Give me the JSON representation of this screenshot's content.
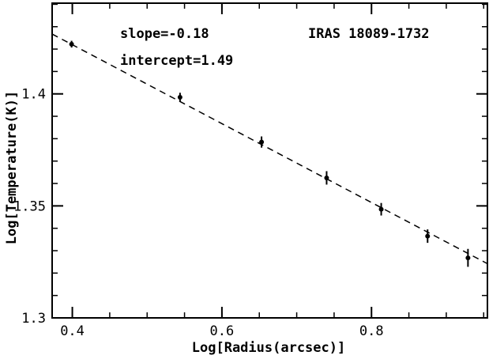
{
  "chart_data": {
    "type": "scatter",
    "title": "",
    "xlabel": "Log[Radius(arcsec)]",
    "ylabel": "Log[Temperature(K)]",
    "xlim": [
      0.373,
      0.955
    ],
    "ylim": [
      1.3,
      1.4405
    ],
    "x_ticks": [
      {
        "value": 0.4,
        "label": "0.4"
      },
      {
        "value": 0.6,
        "label": "0.6"
      },
      {
        "value": 0.8,
        "label": "0.8"
      }
    ],
    "y_ticks": [
      {
        "value": 1.3,
        "label": "1.3"
      },
      {
        "value": 1.35,
        "label": "1.35"
      },
      {
        "value": 1.4,
        "label": "1.4"
      }
    ],
    "x_minor_step": 0.05,
    "y_minor_step": 0.01,
    "grid": false,
    "legend": "none",
    "series": [
      {
        "points": [
          {
            "x": 0.399,
            "y": 1.4222,
            "err": 0.0015
          },
          {
            "x": 0.544,
            "y": 1.3985,
            "err": 0.002
          },
          {
            "x": 0.653,
            "y": 1.3785,
            "err": 0.0025
          },
          {
            "x": 0.74,
            "y": 1.3625,
            "err": 0.003
          },
          {
            "x": 0.813,
            "y": 1.3485,
            "err": 0.0028
          },
          {
            "x": 0.875,
            "y": 1.3365,
            "err": 0.003
          },
          {
            "x": 0.929,
            "y": 1.3268,
            "err": 0.004
          }
        ]
      }
    ],
    "fit_line": {
      "style": "dashed",
      "x": [
        0.373,
        0.955
      ],
      "y": [
        1.4267,
        1.3242
      ]
    },
    "annotations": {
      "slope": "slope=-0.18",
      "intercept": "intercept=1.49",
      "source": "IRAS 18089-1732"
    },
    "colors": {
      "ink": "#000000",
      "background": "#ffffff"
    }
  }
}
